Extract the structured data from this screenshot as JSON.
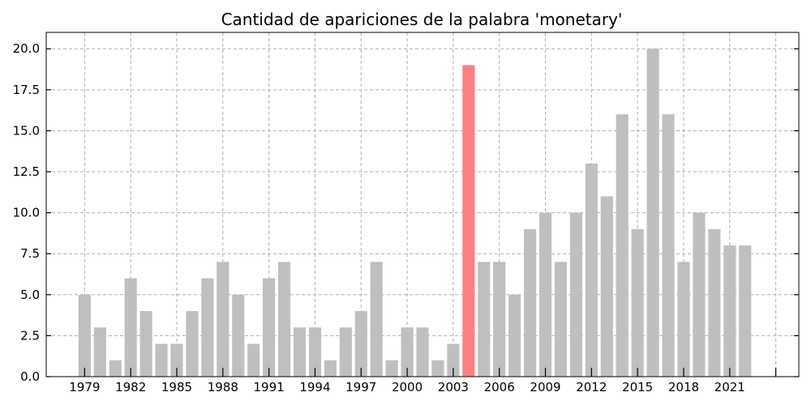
{
  "chart_data": {
    "type": "bar",
    "title": "Cantidad de apariciones de la palabra 'monetary'",
    "xlabel": "",
    "ylabel": "",
    "categories": [
      1979,
      1980,
      1981,
      1982,
      1983,
      1984,
      1985,
      1986,
      1987,
      1988,
      1989,
      1990,
      1991,
      1992,
      1993,
      1994,
      1995,
      1996,
      1997,
      1998,
      1999,
      2000,
      2001,
      2002,
      2003,
      2004,
      2005,
      2006,
      2007,
      2008,
      2009,
      2010,
      2011,
      2012,
      2013,
      2014,
      2015,
      2016,
      2017,
      2018,
      2019,
      2020,
      2021,
      2022
    ],
    "values": [
      5,
      3,
      1,
      6,
      4,
      2,
      2,
      4,
      6,
      7,
      5,
      2,
      6,
      7,
      3,
      3,
      1,
      3,
      4,
      7,
      1,
      3,
      3,
      1,
      2,
      19,
      7,
      7,
      5,
      9,
      10,
      7,
      10,
      13,
      11,
      16,
      9,
      20,
      16,
      7,
      10,
      9,
      8,
      8
    ],
    "highlight": 2004,
    "x_tick_labels": [
      "1979",
      "1982",
      "1985",
      "1988",
      "1991",
      "1994",
      "1997",
      "2000",
      "2003",
      "2006",
      "2009",
      "2012",
      "2015",
      "2018",
      "2021"
    ],
    "y_tick_labels": [
      "0.0",
      "2.5",
      "5.0",
      "7.5",
      "10.0",
      "12.5",
      "15.0",
      "17.5",
      "20.0"
    ],
    "ylim": [
      0,
      21
    ],
    "xlim": [
      1976.5,
      2025.5
    ],
    "grid": true,
    "colors": {
      "bar": "#bfbfbf",
      "highlight": "#ff7f7f"
    }
  }
}
